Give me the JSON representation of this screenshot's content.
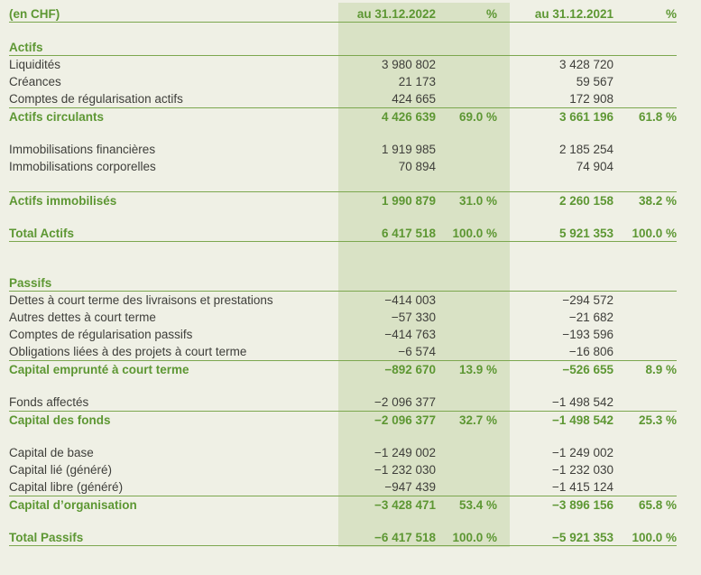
{
  "header": {
    "currency_label": "(en CHF)",
    "col_2022": "au 31.12.2022",
    "pct_2022": "%",
    "col_2021": "au 31.12.2021",
    "pct_2021": "%"
  },
  "colors": {
    "page_background": "#eff0e5",
    "highlight_band": "#d9e2c5",
    "accent_green": "#5d9733",
    "rule_green": "#7ca74f",
    "body_text": "#3e3e3a"
  },
  "rows": [
    {
      "type": "blank"
    },
    {
      "type": "section",
      "label": "Actifs",
      "v2022": "",
      "p2022": "",
      "v2021": "",
      "p2021": ""
    },
    {
      "type": "data",
      "label": "Liquidités",
      "v2022": "3 980 802",
      "p2022": "",
      "v2021": "3 428 720",
      "p2021": ""
    },
    {
      "type": "data",
      "label": "Créances",
      "v2022": "21 173",
      "p2022": "",
      "v2021": "59 567",
      "p2021": ""
    },
    {
      "type": "data",
      "label": "Comptes de régularisation actifs",
      "v2022": "424 665",
      "p2022": "",
      "v2021": "172 908",
      "p2021": ""
    },
    {
      "type": "subtotal",
      "label": "Actifs circulants",
      "v2022": "4 426 639",
      "p2022": "69.0 %",
      "v2021": "3 661 196",
      "p2021": "61.8 %"
    },
    {
      "type": "blank"
    },
    {
      "type": "data",
      "label": "Immobilisations financières",
      "v2022": "1 919 985",
      "p2022": "",
      "v2021": "2 185 254",
      "p2021": ""
    },
    {
      "type": "data",
      "label": "Immobilisations corporelles",
      "v2022": "70 894",
      "p2022": "",
      "v2021": "74 904",
      "p2021": ""
    },
    {
      "type": "blank"
    },
    {
      "type": "subtotal",
      "label": "Actifs immobilisés",
      "v2022": "1 990 879",
      "p2022": "31.0 %",
      "v2021": "2 260 158",
      "p2021": "38.2 %"
    },
    {
      "type": "blank"
    },
    {
      "type": "total",
      "label": "Total Actifs",
      "v2022": "6 417 518",
      "p2022": "100.0 %",
      "v2021": "5 921 353",
      "p2021": "100.0 %"
    },
    {
      "type": "blank"
    },
    {
      "type": "blank"
    },
    {
      "type": "section",
      "label": "Passifs",
      "v2022": "",
      "p2022": "",
      "v2021": "",
      "p2021": ""
    },
    {
      "type": "data",
      "label": "Dettes à court terme des livraisons et prestations",
      "v2022": "−414 003",
      "p2022": "",
      "v2021": "−294 572",
      "p2021": ""
    },
    {
      "type": "data",
      "label": "Autres dettes à court terme",
      "v2022": "−57 330",
      "p2022": "",
      "v2021": "−21 682",
      "p2021": ""
    },
    {
      "type": "data",
      "label": "Comptes de régularisation passifs",
      "v2022": "−414 763",
      "p2022": "",
      "v2021": "−193 596",
      "p2021": ""
    },
    {
      "type": "data",
      "label": "Obligations liées à des projets à court terme",
      "v2022": "−6 574",
      "p2022": "",
      "v2021": "−16 806",
      "p2021": ""
    },
    {
      "type": "subtotal",
      "label": "Capital emprunté à court terme",
      "v2022": "−892 670",
      "p2022": "13.9 %",
      "v2021": "−526 655",
      "p2021": "8.9 %"
    },
    {
      "type": "blank"
    },
    {
      "type": "data",
      "label": "Fonds affectés",
      "v2022": "−2 096 377",
      "p2022": "",
      "v2021": "−1 498 542",
      "p2021": ""
    },
    {
      "type": "subtotal",
      "label": "Capital des fonds",
      "v2022": "−2 096 377",
      "p2022": "32.7 %",
      "v2021": "−1 498 542",
      "p2021": "25.3 %"
    },
    {
      "type": "blank"
    },
    {
      "type": "data",
      "label": "Capital de base",
      "v2022": "−1 249 002",
      "p2022": "",
      "v2021": "−1 249 002",
      "p2021": ""
    },
    {
      "type": "data",
      "label": "Capital lié (généré)",
      "v2022": "−1 232 030",
      "p2022": "",
      "v2021": "−1 232 030",
      "p2021": ""
    },
    {
      "type": "data",
      "label": "Capital libre (généré)",
      "v2022": "−947 439",
      "p2022": "",
      "v2021": "−1 415 124",
      "p2021": ""
    },
    {
      "type": "subtotal",
      "label": "Capital d’organisation",
      "v2022": "−3 428 471",
      "p2022": "53.4 %",
      "v2021": "−3 896 156",
      "p2021": "65.8 %"
    },
    {
      "type": "blank"
    },
    {
      "type": "total",
      "label": "Total Passifs",
      "v2022": "−6 417 518",
      "p2022": "100.0 %",
      "v2021": "−5 921 353",
      "p2021": "100.0 %"
    }
  ]
}
